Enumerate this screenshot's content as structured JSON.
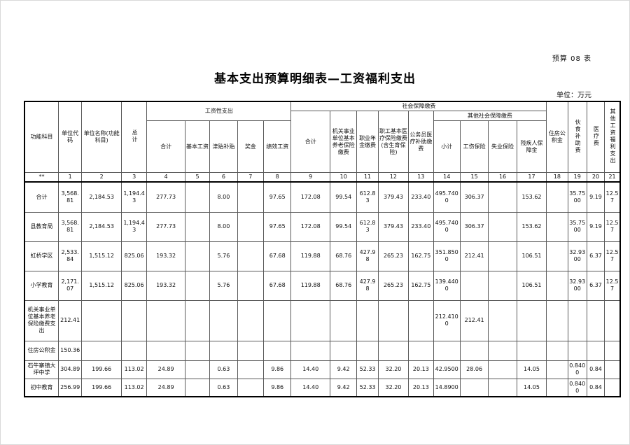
{
  "meta": {
    "sheet_label": "预算 08 表",
    "title": "基本支出预算明细表—工资福利支出",
    "unit_note": "单位：万元"
  },
  "table": {
    "groups": {
      "wage": "工资性支出",
      "social": "社会保障缴费",
      "other_social": "其他社会保障缴费"
    },
    "columns": {
      "func": "功能科目",
      "unit_code": "单位代码",
      "unit_name": "单位名称(功能科目)",
      "total": "总计",
      "wage_total": "合计",
      "base_wage": "基本工资",
      "allowance": "津贴补贴",
      "bonus": "奖金",
      "perf_wage": "绩效工资",
      "social_total": "合计",
      "pension": "机关事业单位基本养老保险缴费",
      "annuity": "职业年金缴费",
      "medical_insurance": "职工基本医疗保险缴费(含生育保险)",
      "civil_medical": "公务员医疗补助缴费",
      "other_subtotal": "小计",
      "injury_insurance": "工伤保险",
      "unemployment_insurance": "失业保险",
      "disability_fund": "残疾人保障金",
      "housing_fund": "住房公积金",
      "meal_subsidy": "伙食补助费",
      "medical_fee": "医疗费",
      "other_welfare": "其他工资福利支出"
    },
    "col_numbers": [
      "**",
      "1",
      "2",
      "3",
      "4",
      "5",
      "6",
      "7",
      "8",
      "9",
      "10",
      "11",
      "12",
      "13",
      "14",
      "15",
      "16",
      "17",
      "18",
      "19",
      "20",
      "21"
    ],
    "rows": [
      {
        "label": "合计",
        "values": [
          "3,568.81",
          "2,184.53",
          "1,194.43",
          "277.73",
          "",
          "8.00",
          "",
          "97.65",
          "172.08",
          "99.54",
          "612.83",
          "379.43",
          "233.40",
          "495.7400",
          "306.37",
          "",
          "153.62",
          "",
          "35.7500",
          "9.19",
          "12.57"
        ]
      },
      {
        "label": "县教育局",
        "values": [
          "3,568.81",
          "2,184.53",
          "1,194.43",
          "277.73",
          "",
          "8.00",
          "",
          "97.65",
          "172.08",
          "99.54",
          "612.83",
          "379.43",
          "233.40",
          "495.7400",
          "306.37",
          "",
          "153.62",
          "",
          "35.7500",
          "9.19",
          "12.57"
        ]
      },
      {
        "label": "虹桥学区",
        "values": [
          "2,533.84",
          "1,515.12",
          "825.06",
          "193.32",
          "",
          "5.76",
          "",
          "67.68",
          "119.88",
          "68.76",
          "427.98",
          "265.23",
          "162.75",
          "351.8500",
          "212.41",
          "",
          "106.51",
          "",
          "32.9300",
          "6.37",
          "12.57"
        ]
      },
      {
        "label": "小学教育",
        "values": [
          "2,171.07",
          "1,515.12",
          "825.06",
          "193.32",
          "",
          "5.76",
          "",
          "67.68",
          "119.88",
          "68.76",
          "427.98",
          "265.23",
          "162.75",
          "139.4400",
          "",
          "",
          "106.51",
          "",
          "32.9300",
          "6.37",
          "12.57"
        ]
      },
      {
        "label": "机关事业单位基本养老保险缴费支出",
        "values": [
          "212.41",
          "",
          "",
          "",
          "",
          "",
          "",
          "",
          "",
          "",
          "",
          "",
          "",
          "212.4100",
          "212.41",
          "",
          "",
          "",
          "",
          "",
          ""
        ]
      },
      {
        "label": "住房公积金",
        "values": [
          "150.36",
          "",
          "",
          "",
          "",
          "",
          "",
          "",
          "",
          "",
          "",
          "",
          "",
          "",
          "",
          "",
          "",
          "",
          "",
          "",
          ""
        ]
      },
      {
        "label": "石牛寨镇大坪中学",
        "values": [
          "304.89",
          "199.66",
          "113.02",
          "24.89",
          "",
          "0.63",
          "",
          "9.86",
          "14.40",
          "9.42",
          "52.33",
          "32.20",
          "20.13",
          "42.9500",
          "28.06",
          "",
          "14.05",
          "",
          "0.8400",
          "0.84",
          ""
        ]
      },
      {
        "label": "初中教育",
        "values": [
          "256.99",
          "199.66",
          "113.02",
          "24.89",
          "",
          "0.63",
          "",
          "9.86",
          "14.40",
          "9.42",
          "52.33",
          "32.20",
          "20.13",
          "14.8900",
          "",
          "",
          "14.05",
          "",
          "0.8400",
          "0.84",
          ""
        ]
      }
    ]
  }
}
